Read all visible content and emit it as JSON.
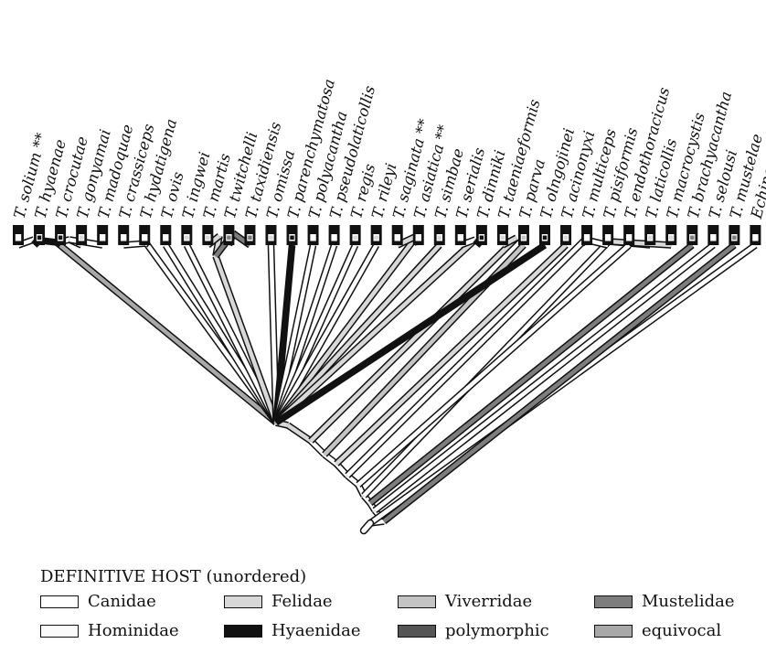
{
  "taxa": [
    {
      "name": "T. solium **",
      "state": "hominidae"
    },
    {
      "name": "T. hyaenae",
      "state": "hyaenidae"
    },
    {
      "name": "T. crocutae",
      "state": "hyaenidae"
    },
    {
      "name": "T. gonyamai",
      "state": "felidae"
    },
    {
      "name": "T. madoquae",
      "state": "canidae"
    },
    {
      "name": "T. crassiceps",
      "state": "canidae"
    },
    {
      "name": "T. hydatigena",
      "state": "canidae"
    },
    {
      "name": "T. ovis",
      "state": "canidae"
    },
    {
      "name": "T. ingwei",
      "state": "felidae"
    },
    {
      "name": "T. martis",
      "state": "felidae"
    },
    {
      "name": "T. twitchelli",
      "state": "mustelidae"
    },
    {
      "name": "T. taxidiensis",
      "state": "mustelidae"
    },
    {
      "name": "T. omissa",
      "state": "felidae"
    },
    {
      "name": "T. parenchymatosa",
      "state": "hyaenidae"
    },
    {
      "name": "T. polyacantha",
      "state": "canidae"
    },
    {
      "name": "T. pseudolaticollis",
      "state": "canidae"
    },
    {
      "name": "T. regis",
      "state": "felidae"
    },
    {
      "name": "T. rileyi",
      "state": "felidae"
    },
    {
      "name": "T. saginata **",
      "state": "hominidae"
    },
    {
      "name": "T. asiatica **",
      "state": "hominidae"
    },
    {
      "name": "T. simbae",
      "state": "felidae"
    },
    {
      "name": "T. serialis",
      "state": "canidae"
    },
    {
      "name": "T. dinniki",
      "state": "hyaenidae"
    },
    {
      "name": "T. taeniaeformis",
      "state": "felidae"
    },
    {
      "name": "T. parva",
      "state": "viverridae"
    },
    {
      "name": "T. olngojinei",
      "state": "hyaenidae"
    },
    {
      "name": "T. acinonyxi",
      "state": "felidae"
    },
    {
      "name": "T. multiceps",
      "state": "canidae"
    },
    {
      "name": "T. pisiformis",
      "state": "canidae"
    },
    {
      "name": "T. endothoracicus",
      "state": "canidae"
    },
    {
      "name": "T. laticollis",
      "state": "felidae"
    },
    {
      "name": "T. macrocystis",
      "state": "felidae"
    },
    {
      "name": "T. brachyacantha",
      "state": "mustelidae"
    },
    {
      "name": "T. selousi",
      "state": "canidae"
    },
    {
      "name": "T. mustelae",
      "state": "mustelidae"
    },
    {
      "name": "Echinococcus",
      "state": "canidae"
    }
  ],
  "legend": {
    "title": "DEFINITIVE HOST (unordered)",
    "items": [
      {
        "key": "canidae",
        "label": "Canidae"
      },
      {
        "key": "felidae",
        "label": "Felidae"
      },
      {
        "key": "viverridae",
        "label": "Viverridae"
      },
      {
        "key": "mustelidae",
        "label": "Mustelidae"
      },
      {
        "key": "hominidae",
        "label": "Hominidae"
      },
      {
        "key": "hyaenidae",
        "label": "Hyaenidae"
      },
      {
        "key": "polymorphic",
        "label": "polymorphic"
      },
      {
        "key": "equivocal",
        "label": "equivocal"
      }
    ]
  },
  "colors": {
    "canidae": "#ffffff",
    "hominidae": "#fbfbfb",
    "felidae": "#d8d8d8",
    "hyaenidae": "#111111",
    "viverridae": "#c4c4c4",
    "polymorphic": "#555555",
    "mustelidae": "#7d7d7d",
    "equivocal": "#a8a8a8",
    "outline": "#111111"
  }
}
